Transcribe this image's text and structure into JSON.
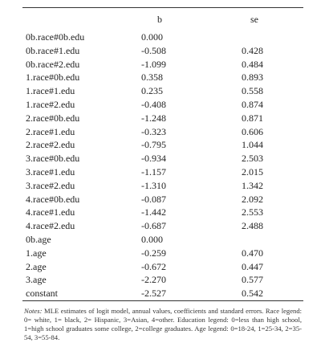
{
  "table": {
    "headers": {
      "label": "",
      "b": "b",
      "se": "se"
    },
    "rows": [
      {
        "label": "0b.race#0b.edu",
        "b": "0.000",
        "se": ""
      },
      {
        "label": "0b.race#1.edu",
        "b": "-0.508",
        "se": "0.428"
      },
      {
        "label": "0b.race#2.edu",
        "b": "-1.099",
        "se": "0.484"
      },
      {
        "label": "1.race#0b.edu",
        "b": "0.358",
        "se": "0.893"
      },
      {
        "label": "1.race#1.edu",
        "b": "0.235",
        "se": "0.558"
      },
      {
        "label": "1.race#2.edu",
        "b": "-0.408",
        "se": "0.874"
      },
      {
        "label": "2.race#0b.edu",
        "b": "-1.248",
        "se": "0.871"
      },
      {
        "label": "2.race#1.edu",
        "b": "-0.323",
        "se": "0.606"
      },
      {
        "label": "2.race#2.edu",
        "b": "-0.795",
        "se": "1.044"
      },
      {
        "label": "3.race#0b.edu",
        "b": "-0.934",
        "se": "2.503"
      },
      {
        "label": "3.race#1.edu",
        "b": "-1.157",
        "se": "2.015"
      },
      {
        "label": "3.race#2.edu",
        "b": "-1.310",
        "se": "1.342"
      },
      {
        "label": "4.race#0b.edu",
        "b": "-0.087",
        "se": "2.092"
      },
      {
        "label": "4.race#1.edu",
        "b": "-1.442",
        "se": "2.553"
      },
      {
        "label": "4.race#2.edu",
        "b": "-0.687",
        "se": "2.488"
      },
      {
        "label": "0b.age",
        "b": "0.000",
        "se": ""
      },
      {
        "label": "1.age",
        "b": "-0.259",
        "se": "0.470"
      },
      {
        "label": "2.age",
        "b": "-0.672",
        "se": "0.447"
      },
      {
        "label": "3.age",
        "b": "-2.270",
        "se": "0.577"
      },
      {
        "label": "constant",
        "b": "-2.527",
        "se": "0.542"
      }
    ]
  },
  "notes": {
    "label": "Notes:",
    "text": "MLE estimates of logit model, annual values, coefficients and standard errors. Race legend: 0= white, 1= black, 2= Hispanic, 3=Asian, 4=other. Education legend: 0=less than high school, 1=high school graduates some college, 2=college graduates. Age legend: 0=18-24, 1=25-34, 2=35-54, 3=55-84."
  }
}
